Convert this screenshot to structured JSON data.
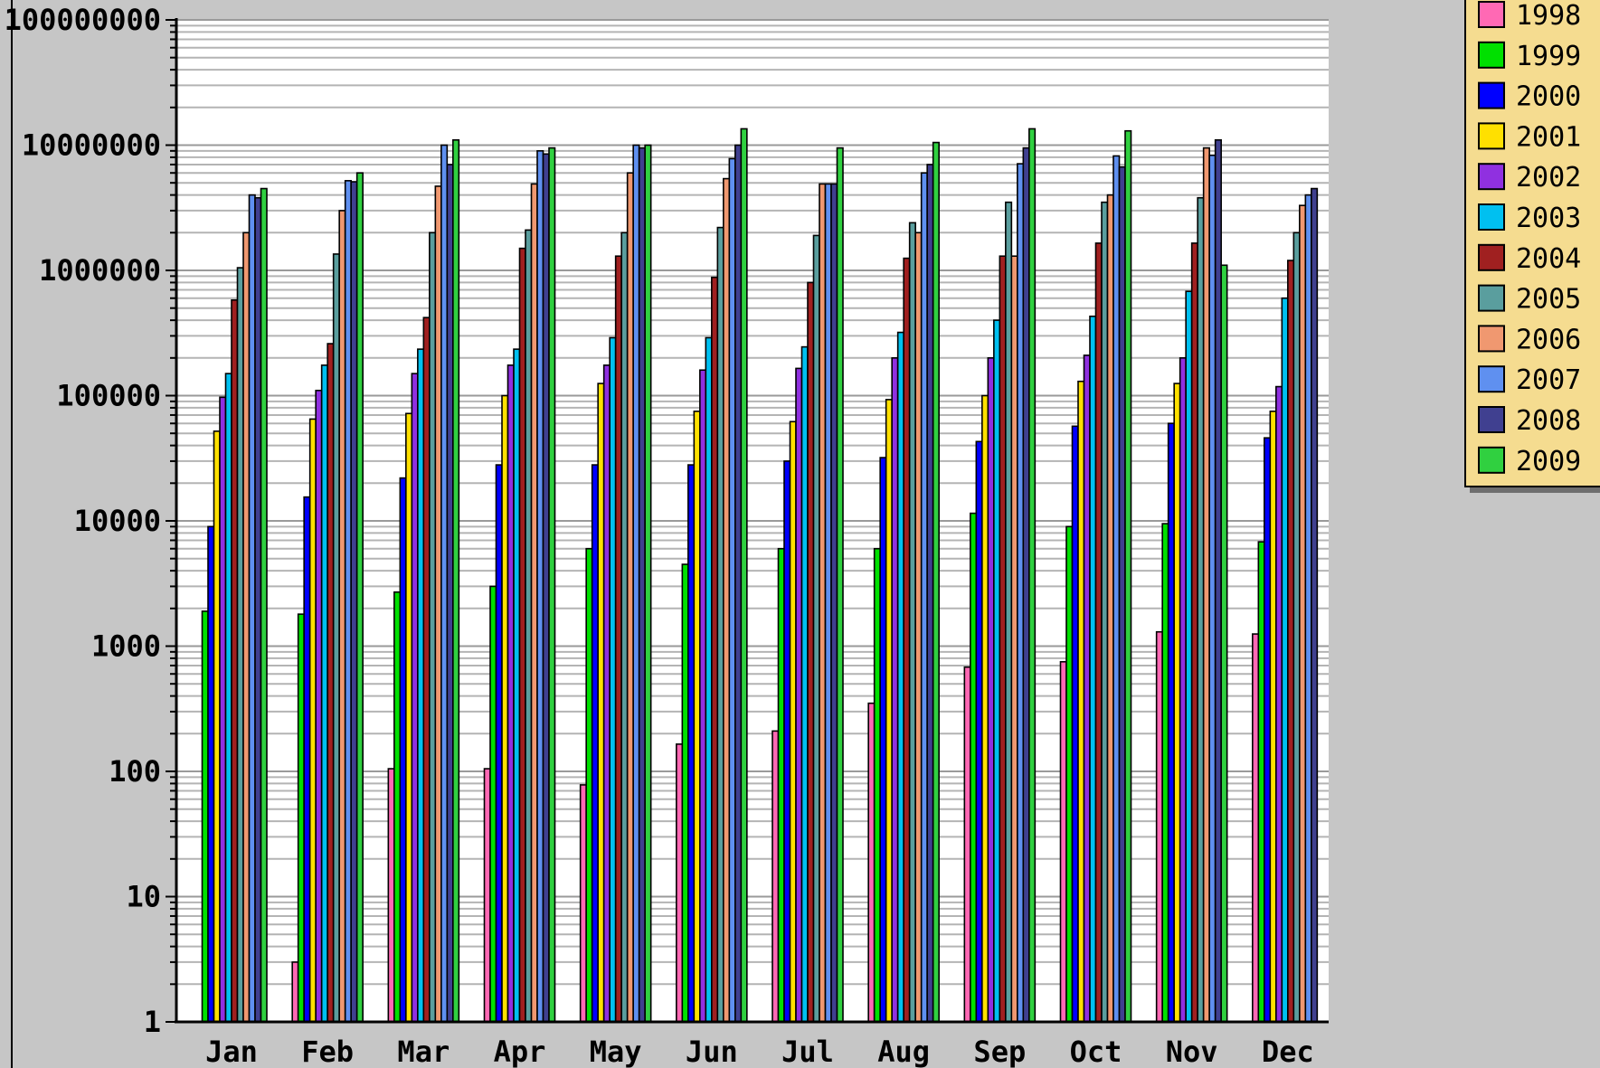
{
  "chart_data": {
    "type": "bar",
    "scale": "log",
    "ylim": [
      1,
      100000000
    ],
    "y_tick_labels": [
      "1",
      "10",
      "100",
      "1000",
      "10000",
      "100000",
      "1000000",
      "10000000",
      "100000000"
    ],
    "categories": [
      "Jan",
      "Feb",
      "Mar",
      "Apr",
      "May",
      "Jun",
      "Jul",
      "Aug",
      "Sep",
      "Oct",
      "Nov",
      "Dec"
    ],
    "grid": true,
    "legend_position": "top-right",
    "series": [
      {
        "name": "1998",
        "color": "#ff69b4",
        "values": [
          null,
          3,
          105,
          105,
          78,
          165,
          210,
          350,
          680,
          750,
          1300,
          1250
        ]
      },
      {
        "name": "1999",
        "color": "#00e000",
        "values": [
          1900,
          1800,
          2700,
          3000,
          6000,
          4500,
          6000,
          6000,
          11500,
          9000,
          9500,
          6800
        ]
      },
      {
        "name": "2000",
        "color": "#0000ff",
        "values": [
          9000,
          15500,
          22000,
          28000,
          28000,
          28000,
          30000,
          32000,
          43000,
          57000,
          60000,
          46000
        ]
      },
      {
        "name": "2001",
        "color": "#ffe000",
        "values": [
          52000,
          65000,
          72000,
          100000,
          125000,
          75000,
          62000,
          93000,
          100000,
          130000,
          125000,
          75000
        ]
      },
      {
        "name": "2002",
        "color": "#9030e0",
        "values": [
          97000,
          110000,
          150000,
          175000,
          175000,
          160000,
          165000,
          200000,
          200000,
          210000,
          200000,
          118000
        ]
      },
      {
        "name": "2003",
        "color": "#00c0f0",
        "values": [
          150000,
          175000,
          235000,
          235000,
          290000,
          290000,
          245000,
          320000,
          400000,
          430000,
          680000,
          600000
        ]
      },
      {
        "name": "2004",
        "color": "#a02020",
        "values": [
          580000,
          260000,
          420000,
          1500000,
          1300000,
          880000,
          800000,
          1250000,
          1300000,
          1650000,
          1650000,
          1200000
        ]
      },
      {
        "name": "2005",
        "color": "#5a9e9e",
        "values": [
          1050000,
          1350000,
          2000000,
          2100000,
          2000000,
          2200000,
          1900000,
          2400000,
          3500000,
          3500000,
          3800000,
          2000000
        ]
      },
      {
        "name": "2006",
        "color": "#f09870",
        "values": [
          2000000,
          3000000,
          4700000,
          4900000,
          6000000,
          5400000,
          4900000,
          2000000,
          1300000,
          4000000,
          9500000,
          3300000
        ]
      },
      {
        "name": "2007",
        "color": "#5f90f0",
        "values": [
          4000000,
          5200000,
          10000000,
          9000000,
          10000000,
          7800000,
          4900000,
          6000000,
          7100000,
          8200000,
          8300000,
          4000000
        ]
      },
      {
        "name": "2008",
        "color": "#404090",
        "values": [
          3800000,
          5100000,
          7000000,
          8500000,
          9500000,
          10000000,
          4900000,
          7000000,
          9500000,
          6700000,
          11000000,
          4500000
        ]
      },
      {
        "name": "2009",
        "color": "#30d040",
        "values": [
          4500000,
          6000000,
          11000000,
          9500000,
          10000000,
          13500000,
          9500000,
          10500000,
          13500000,
          13000000,
          1100000,
          null
        ]
      }
    ]
  }
}
